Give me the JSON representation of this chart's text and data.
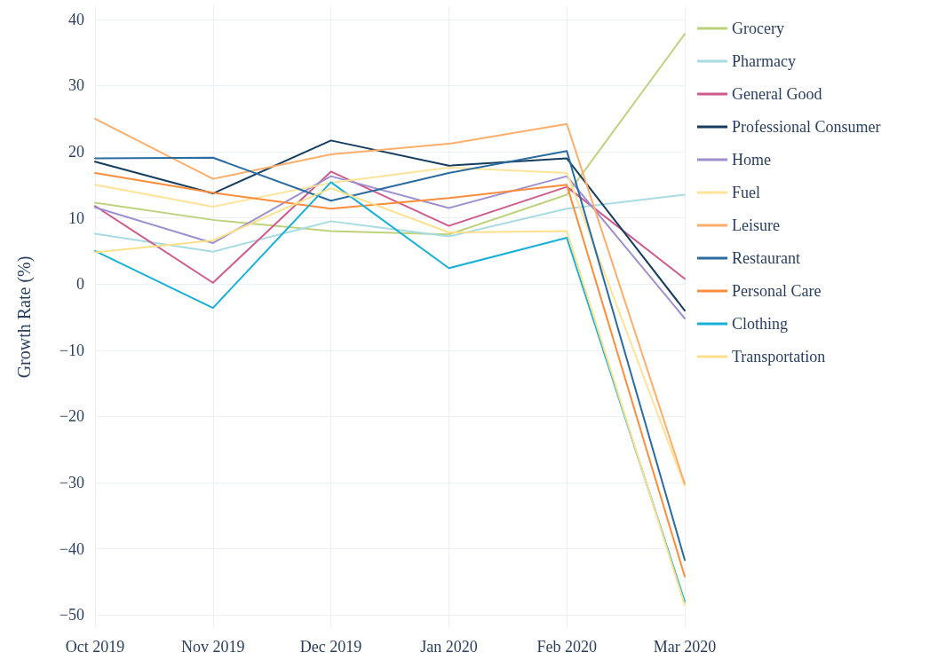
{
  "chart_data": {
    "type": "line",
    "ylabel": "Growth Rate (%)",
    "categories": [
      "Oct 2019",
      "Nov 2019",
      "Dec 2019",
      "Jan 2020",
      "Feb 2020",
      "Mar 2020"
    ],
    "series": [
      {
        "name": "Grocery",
        "color": "#bcd37b",
        "values": [
          12.3,
          9.7,
          8.0,
          7.5,
          13.5,
          37.8
        ]
      },
      {
        "name": "Pharmacy",
        "color": "#a8dbe2",
        "values": [
          7.6,
          4.9,
          9.5,
          7.2,
          11.4,
          13.5
        ]
      },
      {
        "name": "General Good",
        "color": "#cf5a8c",
        "values": [
          11.8,
          0.2,
          17.0,
          8.8,
          14.7,
          0.8
        ]
      },
      {
        "name": "Professional Consumer",
        "color": "#173d5e",
        "values": [
          18.5,
          13.7,
          21.7,
          17.9,
          19.0,
          -4.0
        ]
      },
      {
        "name": "Home",
        "color": "#9e8fcf",
        "values": [
          11.6,
          6.2,
          16.3,
          11.5,
          16.3,
          -5.2
        ]
      },
      {
        "name": "Fuel",
        "color": "#fde39a",
        "values": [
          15.0,
          11.7,
          15.3,
          17.6,
          16.8,
          -30.5
        ]
      },
      {
        "name": "Leisure",
        "color": "#fdae6b",
        "values": [
          25.0,
          15.9,
          19.6,
          21.2,
          24.2,
          -30.2
        ]
      },
      {
        "name": "Restaurant",
        "color": "#2c6ba0",
        "values": [
          19.0,
          19.1,
          12.6,
          16.8,
          20.1,
          -41.7
        ]
      },
      {
        "name": "Personal Care",
        "color": "#fd8d3c",
        "values": [
          16.8,
          13.8,
          11.4,
          13.0,
          15.0,
          -44.2
        ]
      },
      {
        "name": "Clothing",
        "color": "#17b0d8",
        "values": [
          5.0,
          -3.6,
          15.4,
          2.4,
          7.0,
          -48.0
        ]
      },
      {
        "name": "Transportation",
        "color": "#fde08c",
        "values": [
          4.8,
          6.6,
          14.5,
          7.8,
          8.0,
          -48.5
        ]
      }
    ],
    "ylim": [
      -52,
      42
    ],
    "yticks": [
      -50,
      -40,
      -30,
      -20,
      -10,
      0,
      10,
      20,
      30,
      40
    ],
    "grid": true,
    "legend": "top right",
    "marker": "none",
    "line_style": "solid"
  }
}
